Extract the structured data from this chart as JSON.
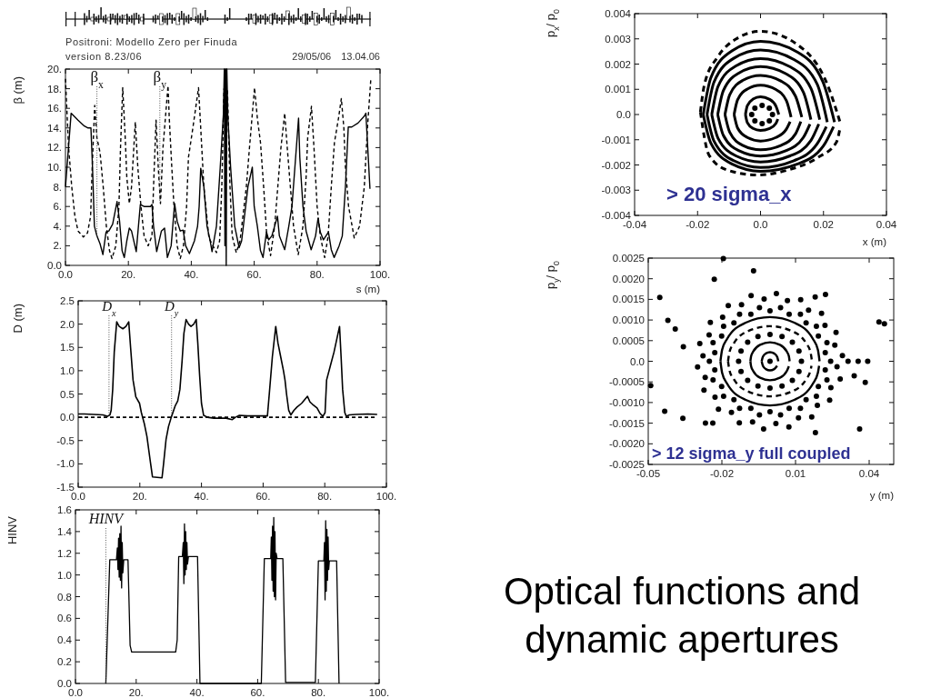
{
  "chart_data": [
    {
      "type": "line",
      "title": "Positroni: Modello Zero per Finuda",
      "subtitle": "version 8.23/06",
      "xlabel": "s (m)",
      "ylabel": "β (m)",
      "line_style": "solid",
      "xlim": [
        0,
        100
      ],
      "ylim": [
        0,
        20
      ],
      "xticks": [
        {
          "value": 0,
          "label": "0.0"
        },
        {
          "value": 20,
          "label": "20."
        },
        {
          "value": 40,
          "label": "40."
        },
        {
          "value": 60,
          "label": "60."
        },
        {
          "value": 80,
          "label": "80."
        },
        {
          "value": 100,
          "label": "100."
        }
      ],
      "yticks": [
        {
          "value": 0,
          "label": "0.0"
        },
        {
          "value": 2,
          "label": "2."
        },
        {
          "value": 4,
          "label": "4."
        },
        {
          "value": 6,
          "label": "6."
        },
        {
          "value": 8,
          "label": "8."
        },
        {
          "value": 10,
          "label": "10."
        },
        {
          "value": 12,
          "label": "12."
        },
        {
          "value": 14,
          "label": "14."
        },
        {
          "value": 16,
          "label": "16."
        },
        {
          "value": 18,
          "label": "18."
        },
        {
          "value": 20,
          "label": "20."
        }
      ],
      "series": [
        {
          "color": "#000000",
          "x": [
            0,
            1.8,
            4,
            6,
            7.2,
            8.1,
            8.6,
            9.2,
            10,
            11,
            11.9,
            12.9,
            13.8,
            15,
            16.4,
            17.2,
            18,
            18.7,
            19.5,
            20.3,
            21,
            22.5,
            23.8,
            25,
            27,
            27.5,
            28,
            29,
            30.5,
            31.5,
            32.4,
            33.6,
            34.7,
            35.5,
            36.5,
            37.4,
            38.2,
            39.4,
            41,
            42,
            42.5,
            43,
            44,
            45,
            46,
            46.6,
            48,
            49.2,
            50.2,
            50.5,
            50.7,
            50.9,
            51.1,
            51.3,
            51.6,
            52.5,
            53.8,
            55.2,
            56,
            58,
            59.4,
            60,
            61,
            62,
            62.8,
            63.9,
            64.6,
            65.6,
            67.4,
            68,
            69.7,
            71,
            72,
            74.1,
            74.5,
            75.5,
            76.5,
            78.1,
            79.5,
            80.3,
            81,
            82,
            83.6,
            84.5,
            85.4,
            87,
            88,
            89,
            89.9,
            91,
            93,
            95,
            95.5,
            96.8
          ],
          "values": [
            8,
            15.5,
            14.8,
            14.2,
            14,
            14,
            10,
            4,
            3,
            2.2,
            1.1,
            3.4,
            3.5,
            4.2,
            6.5,
            4.5,
            1.5,
            0.8,
            2.5,
            3.8,
            3.5,
            1.4,
            6.2,
            6,
            6,
            6.2,
            4,
            1.4,
            3.5,
            3.8,
            0.8,
            2,
            6.3,
            4.5,
            3.5,
            3.6,
            2,
            1.2,
            2.5,
            4,
            6,
            9.9,
            8,
            4,
            2.5,
            1.4,
            4,
            10,
            15.4,
            20,
            2,
            20,
            0,
            20,
            15.3,
            10,
            4,
            1.8,
            2.5,
            8,
            10,
            6,
            4,
            1.5,
            0.8,
            3.4,
            2.6,
            3,
            5,
            3,
            1.6,
            4,
            6,
            15,
            11,
            6,
            3.5,
            1.6,
            3,
            4.8,
            3.4,
            2.6,
            3.4,
            1.6,
            0.8,
            2,
            3,
            8,
            14.1,
            14.1,
            14.5,
            15.2,
            15.5,
            7.8
          ]
        },
        {
          "color": "#000000",
          "line_style": "dashed",
          "x": [
            0,
            1,
            2,
            3,
            4,
            5.7,
            7,
            8,
            8.5,
            9.3,
            10,
            11,
            12,
            13,
            14,
            14.8,
            16,
            17,
            17.5,
            18.2,
            19,
            19.5,
            20.3,
            21,
            22.2,
            23,
            24,
            25,
            26.3,
            27.5,
            28,
            28.8,
            29.5,
            30.2,
            31,
            32.6,
            33,
            33.8,
            34.5,
            35.5,
            36.5,
            37.5,
            38.5,
            39.1,
            40.5,
            42.3,
            43,
            44,
            45.6,
            48,
            49,
            49.7,
            50.4,
            51.5,
            52.3,
            53,
            54.3,
            55.5,
            57.5,
            58.5,
            60.1,
            61,
            62,
            63,
            64,
            65.2,
            66.5,
            67.5,
            68.5,
            69.7,
            70.5,
            71.5,
            72.5,
            74,
            75.5,
            76.5,
            77,
            78.2,
            79,
            80,
            81,
            82.4,
            83.5,
            84.5,
            85.5,
            86.8,
            87.7,
            88.5,
            89,
            90,
            91.8,
            93.5,
            95,
            96,
            97.1
          ],
          "values": [
            19,
            12,
            8,
            5,
            3.5,
            2.9,
            3.3,
            5,
            10,
            16.3,
            13,
            11.5,
            8,
            4,
            1.5,
            0.7,
            2,
            6,
            12,
            18.1,
            13,
            9,
            6.3,
            8,
            14.6,
            10,
            6,
            3,
            2,
            3,
            8,
            14.8,
            10,
            6.3,
            12,
            18.3,
            15,
            10,
            6,
            2,
            0.7,
            2,
            6,
            11,
            14,
            18.1,
            14,
            8,
            2.8,
            1.3,
            2.5,
            8,
            18,
            18,
            8,
            3,
            1.3,
            2.5,
            8,
            12,
            18.1,
            15,
            12.5,
            8,
            3,
            1,
            4,
            8,
            12,
            15.5,
            12,
            8,
            4,
            1.1,
            4,
            9,
            13,
            16.2,
            12,
            6,
            3,
            0.8,
            3,
            8,
            12.5,
            15,
            17,
            14,
            10,
            6,
            2.8,
            4,
            8,
            14,
            19.1
          ]
        }
      ],
      "annotations": [
        "29/05/06 13.04.06",
        {
          "text": "β$_{x}$",
          "x": 10,
          "y": 3
        },
        {
          "text": "β$_{y}$",
          "x": 30,
          "y": 6.5
        }
      ]
    },
    {
      "type": "line",
      "ylabel": "D (m)",
      "line_style": "solid",
      "xlim": [
        0,
        100
      ],
      "ylim": [
        -1.5,
        2.5
      ],
      "xticks": [
        {
          "value": 0,
          "label": "0.0"
        },
        {
          "value": 20,
          "label": "20."
        },
        {
          "value": 40,
          "label": "40."
        },
        {
          "value": 60,
          "label": "60."
        },
        {
          "value": 80,
          "label": "80."
        },
        {
          "value": 100,
          "label": "100."
        }
      ],
      "yticks": [
        -1.5,
        {
          "value": -1,
          "label": "-1.0"
        },
        -0.5,
        {
          "value": 0,
          "label": "0.0"
        },
        0.5,
        {
          "value": 1,
          "label": "1.0"
        },
        1.5,
        {
          "value": 2,
          "label": "2.0"
        },
        2.5
      ],
      "series": [
        {
          "color": "#000000",
          "x": [
            0,
            2,
            5,
            8,
            9.5,
            10.3,
            10.7,
            11.2,
            11.7,
            12.5,
            13.3,
            14.5,
            15.5,
            16.4,
            17,
            17.8,
            18.7,
            19.9,
            20.5,
            21.5,
            22.3,
            23.3,
            24.1,
            27.2,
            27.7,
            28.5,
            29.3,
            30.2,
            31.5,
            32.3,
            33,
            33.7,
            34.3,
            35,
            35.8,
            36.6,
            37.5,
            38.3,
            38.8,
            39.4,
            40,
            40.7,
            42,
            44,
            48,
            50,
            51,
            52.3,
            55,
            58,
            61.4,
            62,
            63,
            64.1,
            64.8,
            65.7,
            66.6,
            67.1,
            67.6,
            68.3,
            69,
            70,
            71,
            72.5,
            74.4,
            75.2,
            76,
            77.5,
            78.5,
            79.4,
            80.1,
            80.6,
            81.8,
            83,
            84.8,
            85.3,
            85.8,
            86.5,
            87,
            88,
            90,
            94,
            97
          ],
          "values": [
            0.07,
            0.07,
            0.06,
            0.05,
            0.02,
            0.05,
            0.15,
            0.6,
            1.4,
            2.05,
            1.95,
            1.9,
            1.95,
            2.05,
            1.5,
            0.8,
            0.44,
            0.3,
            0.1,
            -0.15,
            -0.41,
            -0.9,
            -1.28,
            -1.3,
            -1,
            -0.48,
            -0.2,
            0,
            0.25,
            0.35,
            0.6,
            1.2,
            1.8,
            2.1,
            2,
            1.95,
            2,
            2.1,
            1.6,
            0.9,
            0.3,
            0.04,
            0,
            -0.02,
            -0.02,
            -0.05,
            0,
            0.04,
            0.03,
            0.03,
            0.03,
            0.5,
            1.3,
            1.95,
            1.6,
            1.3,
            1,
            0.8,
            0.5,
            0.15,
            0.05,
            0.15,
            0.22,
            0.3,
            0.45,
            0.33,
            0.28,
            0.2,
            0.08,
            0.02,
            0.1,
            0.8,
            1.1,
            1.4,
            1.95,
            1.3,
            0.6,
            0.1,
            0.02,
            0.05,
            0.06,
            0.07,
            0.06
          ]
        },
        {
          "color": "#000000",
          "line_style": "dashed",
          "x": [
            0,
            97
          ],
          "values": [
            0,
            0
          ]
        }
      ],
      "annotations": [
        {
          "text": "D$_{x}$",
          "x": 10,
          "y": 0.05
        },
        {
          "text": "D$_{y}$",
          "x": 30.3,
          "y": 0
        }
      ]
    },
    {
      "type": "line",
      "ylabel": "HINV",
      "line_style": "solid",
      "xlim": [
        0,
        100
      ],
      "ylim": [
        0,
        1.6
      ],
      "xticks": [
        {
          "value": 0,
          "label": "0.0"
        },
        {
          "value": 20,
          "label": "20."
        },
        {
          "value": 40,
          "label": "40."
        },
        {
          "value": 60,
          "label": "60."
        },
        {
          "value": 80,
          "label": "80."
        },
        {
          "value": 100,
          "label": "100."
        }
      ],
      "yticks": [
        {
          "value": 0,
          "label": "0.0"
        },
        0.2,
        0.4,
        0.6,
        0.8,
        {
          "value": 1,
          "label": "1.0"
        },
        1.2,
        1.4,
        1.6
      ],
      "series": [
        {
          "color": "#000000",
          "x": [
            10,
            11.3,
            13.5,
            13.8,
            14,
            14.2,
            14.4,
            14.6,
            14.8,
            15,
            15.2,
            15.4,
            15.6,
            15.9,
            17.3,
            18,
            18.5,
            33,
            33.5,
            34,
            35.2,
            35.5,
            35.7,
            35.9,
            36.1,
            36.3,
            36.5,
            36.7,
            36.9,
            37.2,
            40.2,
            41,
            61.2,
            62.2,
            64.3,
            64.5,
            64.7,
            64.9,
            65.1,
            65.3,
            65.5,
            65.7,
            65.9,
            66.1,
            66.4,
            68.3,
            69.2,
            79,
            80,
            81.8,
            82,
            82.2,
            82.4,
            82.6,
            82.8,
            83,
            83.2,
            83.4,
            83.6,
            86,
            86.8
          ],
          "values": [
            0,
            1.14,
            1.14,
            1.25,
            1.05,
            1.34,
            0.98,
            1.38,
            0.95,
            1.45,
            0.88,
            1.3,
            1.02,
            1.14,
            1.14,
            0.35,
            0.29,
            0.29,
            0.4,
            1.17,
            1.17,
            1.3,
            0.92,
            1.47,
            1,
            1.4,
            1.05,
            1.3,
            1.1,
            1.17,
            1.17,
            0,
            0,
            1.15,
            1.15,
            1.35,
            0.95,
            1.45,
            0.85,
            1.53,
            0.8,
            1.4,
            0.77,
            1.2,
            1.15,
            1.15,
            0.01,
            0.01,
            1.13,
            1.13,
            1.3,
            0.77,
            1.5,
            0.85,
            1.42,
            0.95,
            1.35,
            1.05,
            1.13,
            1.13,
            0
          ]
        }
      ],
      "annotations": [
        {
          "text": "HINV",
          "x": 10,
          "y": 0
        }
      ]
    },
    {
      "type": "line",
      "xlabel": "x (m)",
      "ylabel": "p$_{x}$/ p$_{0}$",
      "line_style": "solid",
      "xlim": [
        -0.04,
        0.04
      ],
      "ylim": [
        -0.004,
        0.004
      ],
      "xticks": [
        -0.04,
        -0.02,
        {
          "value": 0,
          "label": "0.0"
        },
        0.02,
        0.04
      ],
      "yticks": [
        -0.004,
        -0.003,
        -0.002,
        -0.001,
        {
          "value": 0,
          "label": "0.0"
        },
        0.001,
        0.002,
        0.003,
        0.004
      ],
      "series": [
        {
          "color": "#000000",
          "line_style": "dashed",
          "x": [
            -0.0191,
            -0.0178,
            -0.0135,
            -0.0077,
            0,
            0.0135,
            0.0212,
            0.0255
          ],
          "values": [
            0.0001,
            0.0012,
            0.0023,
            0.003,
            0.0033,
            0.0026,
            0.0012,
            -0.0004
          ]
        },
        {
          "color": "#000000",
          "line_style": "dashed",
          "x": [
            -0.0191,
            -0.0164,
            -0.0106,
            -0.001,
            0.0087,
            0.0183,
            0.0241,
            0.0252
          ],
          "values": [
            0.0001,
            -0.0016,
            -0.0022,
            -0.0024,
            -0.0022,
            -0.0017,
            -0.0011,
            -0.00058
          ]
        },
        {
          "color": "#000000",
          "x": [
            -0.0182,
            -0.0158,
            -0.0091,
            0,
            0.0118,
            0.0198,
            0.0235
          ],
          "values": [
            0,
            0.00145,
            0.00252,
            0.0029,
            0.00247,
            0.0013,
            -0.0003
          ]
        },
        {
          "color": "#000000",
          "x": [
            -0.0182,
            -0.0158,
            -0.0091,
            0,
            0.0118,
            0.02,
            0.0232
          ],
          "values": [
            0,
            -0.00113,
            -0.00196,
            -0.00225,
            -0.00196,
            -0.00124,
            -0.00048
          ]
        },
        {
          "color": "#000000",
          "x": [
            -0.017,
            -0.0148,
            -0.0085,
            0,
            0.0106,
            0.018,
            0.0212
          ],
          "values": [
            0,
            0.00128,
            0.00223,
            0.00256,
            0.00218,
            0.0012,
            -0.0003
          ]
        },
        {
          "color": "#000000",
          "x": [
            -0.017,
            -0.0148,
            -0.0085,
            0,
            0.0106,
            0.018,
            0.0209
          ],
          "values": [
            0,
            -0.00105,
            -0.00183,
            -0.0021,
            -0.00183,
            -0.00116,
            -0.00048
          ]
        },
        {
          "color": "#000000",
          "x": [
            -0.0155,
            -0.0135,
            -0.0078,
            0,
            0.0094,
            0.016,
            0.0188
          ],
          "values": [
            0,
            0.00111,
            0.00193,
            0.00222,
            0.00189,
            0.00104,
            -0.0002
          ]
        },
        {
          "color": "#000000",
          "x": [
            -0.0155,
            -0.0135,
            -0.0078,
            0,
            0.0094,
            0.016,
            0.0185
          ],
          "values": [
            0,
            -0.00094,
            -0.00164,
            -0.00188,
            -0.00164,
            -0.00103,
            -0.00038
          ]
        },
        {
          "color": "#000000",
          "x": [
            -0.0136,
            -0.0118,
            -0.0068,
            0,
            0.008,
            0.0136,
            0.016
          ],
          "values": [
            0,
            0.00095,
            0.00165,
            0.0019,
            0.00162,
            0.00089,
            -0.0002
          ]
        },
        {
          "color": "#000000",
          "x": [
            -0.0136,
            -0.0118,
            -0.0068,
            0,
            0.008,
            0.0136,
            0.0157
          ],
          "values": [
            0,
            -0.00083,
            -0.00144,
            -0.00165,
            -0.00144,
            -0.00091,
            -0.00038
          ]
        },
        {
          "color": "#000000",
          "x": [
            -0.0113,
            -0.0098,
            -0.0057,
            0,
            0.0066,
            0.0111,
            0.0131
          ],
          "values": [
            0,
            0.00078,
            0.00135,
            0.00155,
            0.00132,
            0.00073,
            -0.0001
          ]
        },
        {
          "color": "#000000",
          "x": [
            -0.0113,
            -0.0098,
            -0.0057,
            0,
            0.0066,
            0.0111,
            0.0128
          ],
          "values": [
            0,
            -0.0007,
            -0.00122,
            -0.0014,
            -0.00122,
            -0.00077,
            -0.00028
          ]
        },
        {
          "color": "#000000",
          "x": [
            -0.0084,
            -0.0073,
            -0.0042,
            0,
            0.0049,
            0.0082,
            0.0097
          ],
          "values": [
            0,
            0.00058,
            0.00101,
            0.00116,
            0.00099,
            0.00055,
            -0.0001
          ]
        },
        {
          "color": "#000000",
          "x": [
            -0.0084,
            -0.0073,
            -0.0042,
            0,
            0.0049,
            0.0082,
            0.0094
          ],
          "values": [
            0,
            -0.00053,
            -0.00091,
            -0.00105,
            -0.00091,
            -0.00058,
            -0.00028
          ]
        },
        {
          "color": "#000000",
          "x": [
            -0.0048,
            -0.0042,
            -0.0024,
            0,
            0.0029,
            0.0049,
            0.0058
          ],
          "values": [
            0,
            0.00035,
            0.00061,
            0.0007,
            0.0006,
            0.00033,
            0
          ]
        },
        {
          "color": "#000000",
          "x": [
            -0.0048,
            -0.0042,
            -0.0024,
            0,
            0.0029,
            0.0049,
            0.0055
          ],
          "values": [
            0,
            -0.00032,
            -0.00055,
            -0.00063,
            -0.00055,
            -0.00035,
            -0.00018
          ]
        },
        {
          "type": "scatter",
          "marker": "circle",
          "color": "#000000",
          "x": [
            0.0038,
            0.0028,
            0.0005,
            -0.0018,
            -0.0028,
            -0.0018,
            0.0005,
            0.0028
          ],
          "values": [
            0,
            0.00025,
            0.00036,
            0.00025,
            0,
            -0.00025,
            -0.00036,
            -0.00025
          ]
        }
      ],
      "annotations": [
        "> 20 sigma_x"
      ]
    },
    {
      "type": "scatter",
      "xlabel": "y (m)",
      "ylabel": "p$_{y}$/ p$_{0}$",
      "line_style": "solid",
      "xlim": [
        -0.05,
        0.05
      ],
      "ylim": [
        -0.0025,
        0.0025
      ],
      "xticks": [
        -0.05,
        -0.02,
        0.01,
        0.04
      ],
      "yticks": [
        {
          "value": -0.0025,
          "label": "-0.0025"
        },
        {
          "value": -0.002,
          "label": "-0.0020"
        },
        {
          "value": -0.0015,
          "label": "-0.0015"
        },
        {
          "value": -0.001,
          "label": "-0.0010"
        },
        {
          "value": -0.0005,
          "label": "-0.0005"
        },
        {
          "value": 0,
          "label": "0.0"
        },
        {
          "value": 0.0005,
          "label": "0.0005"
        },
        {
          "value": 0.001,
          "label": "0.0010"
        },
        {
          "value": 0.0015,
          "label": "0.0015"
        },
        {
          "value": 0.002,
          "label": "0.0020"
        },
        {
          "value": 0.0025,
          "label": "0.0025"
        }
      ],
      "series": [
        {
          "marker": "circle",
          "color": "#000000",
          "x": [
            0.0243,
            0.0221,
            0.0228,
            0.0193,
            0.0185,
            0.0143,
            0.012,
            0.0074,
            0.0039,
            -0.0004,
            -0.0047,
            -0.0082,
            -0.0128,
            -0.0151,
            -0.0193,
            -0.0201,
            -0.0236,
            -0.0229,
            -0.0251,
            -0.0229,
            -0.0236,
            -0.0201,
            -0.0193,
            -0.0151,
            -0.0128,
            -0.0082,
            -0.0047,
            -0.0004,
            0.0039,
            0.0074,
            0.012,
            0.0143,
            0.0185,
            0.0193,
            0.0228,
            0.0221,
            0.0291,
            0.026,
            0.0265,
            0.022,
            0.0206,
            0.0153,
            0.0121,
            0.0067,
            0.0022,
            -0.0028,
            -0.0081,
            -0.012,
            -0.0174,
            -0.0197,
            -0.0247,
            -0.0252,
            -0.029,
            -0.0277,
            -0.0299,
            -0.0268,
            -0.0273,
            -0.0228,
            -0.0214,
            -0.0161,
            -0.0129,
            -0.0075,
            -0.003,
            0.002,
            0.0073,
            0.0112,
            0.0166,
            0.0189,
            0.0239,
            0.0244,
            0.0282,
            0.0269,
            -0.0194,
            -0.0071,
            -0.0231,
            -0.0453,
            -0.042,
            -0.039,
            -0.0357,
            -0.049,
            -0.0433,
            -0.0359,
            -0.0267,
            -0.0237,
            0.018,
            0.0222,
            0.044,
            0.0462,
            0.0314,
            0.0355,
            0.0394,
            0.0339,
            0.0384,
            0.0361,
            0.0181,
            -0.0004
          ],
          "values": [
            0,
            0.00021,
            0.00045,
            0.00061,
            0.00085,
            0.00093,
            0.00114,
            0.00114,
            0.0013,
            0.00122,
            0.0013,
            0.00114,
            0.00114,
            0.00093,
            0.00085,
            0.00061,
            0.00045,
            0.00021,
            0,
            -0.00021,
            -0.00045,
            -0.00061,
            -0.00085,
            -0.00093,
            -0.00114,
            -0.00114,
            -0.0013,
            -0.00122,
            -0.0013,
            -0.00114,
            -0.00114,
            -0.00093,
            -0.00085,
            -0.00061,
            -0.00045,
            -0.00021,
            0.00014,
            0.00039,
            0.0007,
            0.00087,
            0.00116,
            0.00124,
            0.00149,
            0.00147,
            0.00164,
            0.00151,
            0.00159,
            0.00137,
            0.00135,
            0.00107,
            0.00094,
            0.00064,
            0.00043,
            0.00013,
            -0.00014,
            -0.00039,
            -0.0007,
            -0.00087,
            -0.00116,
            -0.00124,
            -0.00149,
            -0.00147,
            -0.00164,
            -0.00151,
            -0.00159,
            -0.00137,
            -0.00135,
            -0.00107,
            -0.00094,
            -0.00064,
            -0.00043,
            -0.00013,
            0.00249,
            0.00219,
            0.00199,
            0.00155,
            0.00099,
            0.00078,
            0.00035,
            -0.00059,
            -0.00121,
            -0.00138,
            -0.0015,
            -0.0015,
            0.00156,
            0.00162,
            0.00095,
            0.00091,
            0,
            0,
            0,
            -0.00035,
            -0.00051,
            -0.00164,
            -0.00173,
            0
          ]
        },
        {
          "type": "line",
          "color": "#000000",
          "x": [
            -0.0038,
            -0.0033,
            -0.0021,
            -0.0004,
            0.0013,
            0.0025,
            0.003
          ],
          "values": [
            0,
            0.00011,
            0.00019,
            0.00022,
            0.00019,
            0.00011,
            0
          ]
        },
        {
          "type": "line",
          "color": "#000000",
          "x": [
            -0.0038,
            -0.0033,
            -0.0021,
            -0.0004,
            0.0013,
            0.0025
          ],
          "values": [
            0,
            -0.00011,
            -0.00019,
            -0.00022,
            -0.00019,
            -0.00011
          ]
        },
        {
          "type": "line",
          "color": "#000000",
          "x": [
            -0.0084,
            -0.0081,
            -0.0073,
            -0.0044,
            -0.0004,
            0.0036,
            0.0065,
            0.0073,
            0.0076
          ],
          "values": [
            0,
            0.00012,
            0.00023,
            0.0004,
            0.00046,
            0.0004,
            0.00023,
            0.00012,
            0
          ]
        },
        {
          "type": "line",
          "color": "#000000",
          "x": [
            -0.0084,
            -0.0081,
            -0.0073,
            -0.0044,
            -0.0004,
            0.0036,
            0.0065,
            0.0073
          ],
          "values": [
            0,
            -0.00012,
            -0.00023,
            -0.0004,
            -0.00046,
            -0.0004,
            -0.00023,
            -0.00012
          ]
        },
        {
          "marker": "circle",
          "color": "#000000",
          "x": [
            0.0124,
            0.0114,
            0.0087,
            0.0045,
            -0.0004,
            -0.0053,
            -0.0095,
            -0.0122,
            -0.0132,
            -0.0122,
            -0.0095,
            -0.0053,
            -0.0004,
            0.0045,
            0.0087,
            0.0114
          ],
          "values": [
            0,
            0.00025,
            0.00046,
            0.0006,
            0.00065,
            0.0006,
            0.00046,
            0.00025,
            0,
            -0.00025,
            -0.00046,
            -0.0006,
            -0.00065,
            -0.0006,
            -0.00046,
            -0.00025
          ]
        },
        {
          "type": "line",
          "line_style": "dashed",
          "color": "#000000",
          "x": [
            -0.0175,
            -0.0169,
            -0.0152,
            -0.009,
            -0.0004,
            0.0082,
            0.0144,
            0.0161,
            0.0167
          ],
          "values": [
            0,
            0.00022,
            0.00043,
            0.00074,
            0.00085,
            0.00074,
            0.00043,
            0.00022,
            0
          ]
        },
        {
          "type": "line",
          "line_style": "dashed",
          "color": "#000000",
          "x": [
            -0.0175,
            -0.0169,
            -0.0152,
            -0.009,
            -0.0004,
            0.0082,
            0.0144,
            0.0161,
            0.0165
          ],
          "values": [
            0,
            -0.00022,
            -0.00043,
            -0.00074,
            -0.00085,
            -0.00074,
            -0.00043,
            -0.00022,
            -0.00011
          ]
        },
        {
          "type": "line",
          "color": "#000000",
          "x": [
            -0.0206,
            -0.0199,
            -0.0179,
            -0.0105,
            -0.0004,
            0.0097,
            0.0171,
            0.0191,
            0.0198
          ],
          "values": [
            0,
            0.00028,
            0.00054,
            0.00093,
            0.00107,
            0.00093,
            0.00054,
            0.00028,
            0
          ]
        },
        {
          "type": "line",
          "color": "#000000",
          "x": [
            -0.0206,
            -0.0199,
            -0.0179,
            -0.0105,
            -0.0004,
            0.0097,
            0.0171,
            0.0191,
            0.0196
          ],
          "values": [
            0,
            -0.00028,
            -0.00054,
            -0.00093,
            -0.00107,
            -0.00093,
            -0.00054,
            -0.00028,
            -0.00011
          ]
        }
      ],
      "annotations": [
        "> 12 sigma_y full coupled"
      ]
    },
    {
      "type": "other",
      "title": "Optical functions and dynamic apertures"
    }
  ]
}
